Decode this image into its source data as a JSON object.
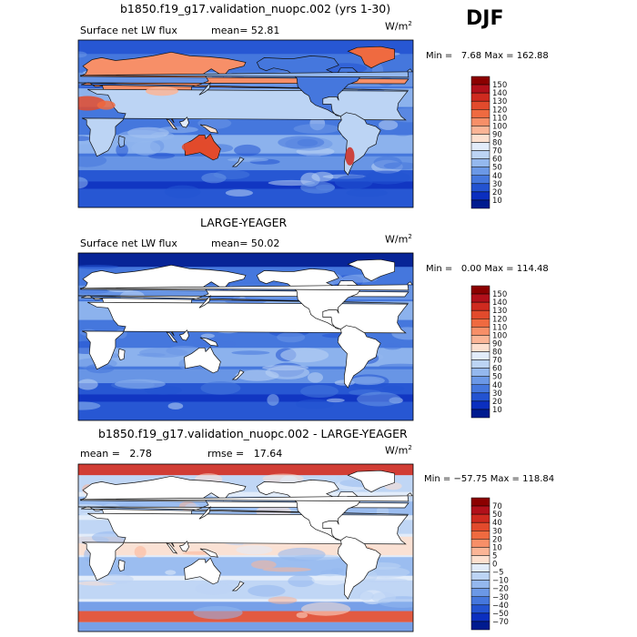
{
  "season": "DJF",
  "chart_data": [
    {
      "type": "heatmap",
      "title": "b1850.f19_g17.validation_nuopc.002 (yrs 1-30)",
      "variable": "Surface net LW flux",
      "mean_label": "mean=",
      "mean": "52.81",
      "units_base": "W/m",
      "units_exp": "2",
      "min_label": "Min =",
      "min": "7.68",
      "max_label": "Max =",
      "max": "162.88",
      "colorbar": {
        "levels": [
          "150",
          "140",
          "130",
          "120",
          "110",
          "100",
          "90",
          "80",
          "70",
          "60",
          "50",
          "40",
          "30",
          "20",
          "10"
        ],
        "colors": [
          "#8b0000",
          "#b2101a",
          "#cf2a1f",
          "#e24a2c",
          "#ef6a40",
          "#f78f68",
          "#fbb596",
          "#fde0cf",
          "#e2ecfa",
          "#bcd4f4",
          "#94b8ee",
          "#6b98e6",
          "#4577dd",
          "#2353d1",
          "#0b2fbf",
          "#001b8f"
        ]
      },
      "mask_land": false
    },
    {
      "type": "heatmap",
      "title": "LARGE-YEAGER",
      "variable": "Surface net LW flux",
      "mean_label": "mean=",
      "mean": "50.02",
      "units_base": "W/m",
      "units_exp": "2",
      "min_label": "Min =",
      "min": "0.00",
      "max_label": "Max =",
      "max": "114.48",
      "colorbar": {
        "levels": [
          "150",
          "140",
          "130",
          "120",
          "110",
          "100",
          "90",
          "80",
          "70",
          "60",
          "50",
          "40",
          "30",
          "20",
          "10"
        ],
        "colors": [
          "#8b0000",
          "#b2101a",
          "#cf2a1f",
          "#e24a2c",
          "#ef6a40",
          "#f78f68",
          "#fbb596",
          "#fde0cf",
          "#e2ecfa",
          "#bcd4f4",
          "#94b8ee",
          "#6b98e6",
          "#4577dd",
          "#2353d1",
          "#0b2fbf",
          "#001b8f"
        ]
      },
      "mask_land": true
    },
    {
      "type": "heatmap",
      "title": "b1850.f19_g17.validation_nuopc.002 - LARGE-YEAGER",
      "variable": "",
      "mean_label": "mean =",
      "mean": "2.78",
      "rmse_label": "rmse =",
      "rmse": "17.64",
      "units_base": "W/m",
      "units_exp": "2",
      "min_label": "Min =",
      "min": "−57.75",
      "max_label": "Max =",
      "max": "118.84",
      "colorbar": {
        "levels": [
          "70",
          "50",
          "40",
          "30",
          "20",
          "10",
          "5",
          "0",
          "−5",
          "−10",
          "−20",
          "−30",
          "−40",
          "−50",
          "−70"
        ],
        "colors": [
          "#8b0000",
          "#b2101a",
          "#cf2a1f",
          "#e24a2c",
          "#ef6a40",
          "#f78f68",
          "#fbb596",
          "#fde0cf",
          "#e2ecfa",
          "#bcd4f4",
          "#94b8ee",
          "#6b98e6",
          "#4577dd",
          "#2353d1",
          "#0b2fbf",
          "#001b8f"
        ]
      },
      "mask_land": true
    }
  ]
}
